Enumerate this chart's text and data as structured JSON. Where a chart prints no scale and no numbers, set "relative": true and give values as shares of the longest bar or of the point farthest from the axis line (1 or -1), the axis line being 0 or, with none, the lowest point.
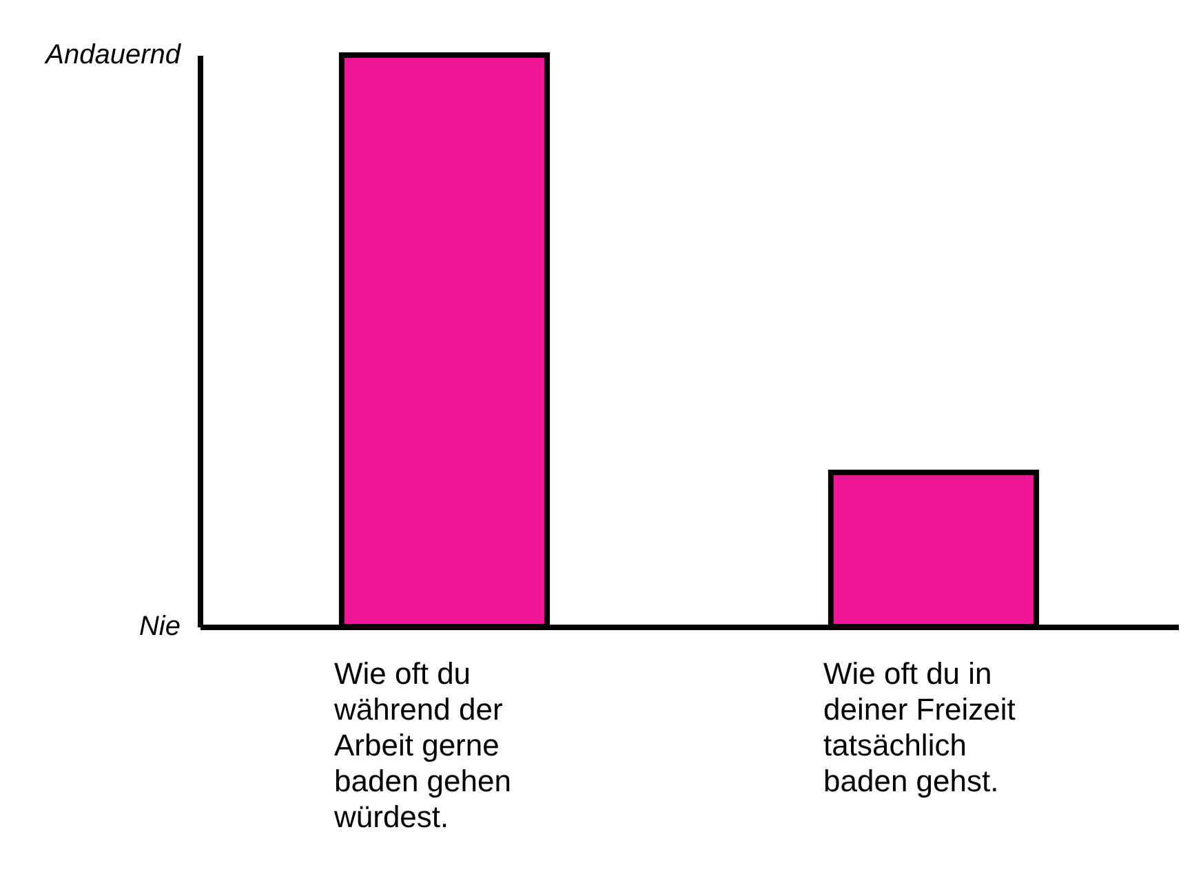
{
  "chart_data": {
    "type": "bar",
    "categories": [
      "Wie oft du während der Arbeit gerne baden gehen würdest.",
      "Wie oft du in deiner Freizeit tatsächlich baden gehst."
    ],
    "values": [
      1,
      0.27
    ],
    "color": "#f01496",
    "relative": true,
    "annotations": [
      "Andauernd",
      "Nie"
    ],
    "grid": false
  }
}
